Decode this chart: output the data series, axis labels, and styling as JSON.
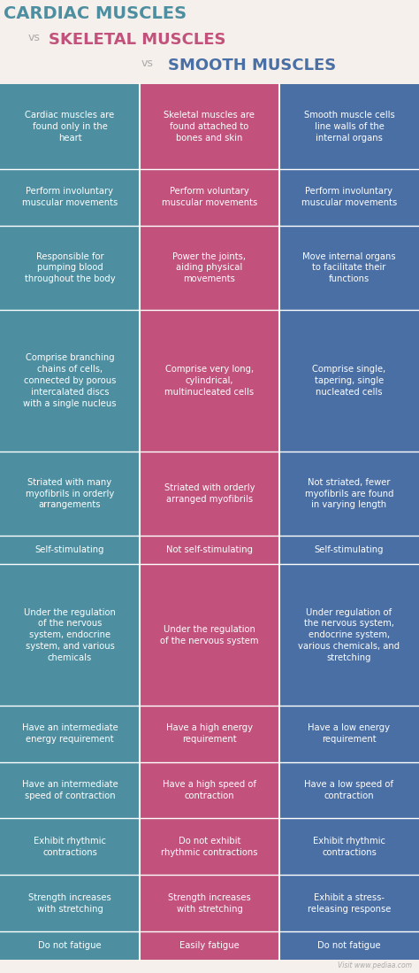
{
  "col1_color": "#4d8fa0",
  "col2_color": "#c2527b",
  "col3_color": "#4a6fa5",
  "bg_color": "#f5f0eb",
  "title_color1": "#4d8fa0",
  "title_color_vs": "#aaaaaa",
  "title_color2": "#c2527b",
  "title_color3": "#4a6fa5",
  "text_color": "#ffffff",
  "sep_color": "#ffffff",
  "footer_color": "#aaaaaa",
  "rows": [
    [
      "Cardiac muscles are\nfound only in the\nheart",
      "Skeletal muscles are\nfound attached to\nbones and skin",
      "Smooth muscle cells\nline walls of the\ninternal organs"
    ],
    [
      "Perform involuntary\nmuscular movements",
      "Perform voluntary\nmuscular movements",
      "Perform involuntary\nmuscular movements"
    ],
    [
      "Responsible for\npumping blood\nthroughout the body",
      "Power the joints,\naiding physical\nmovements",
      "Move internal organs\nto facilitate their\nfunctions"
    ],
    [
      "Comprise branching\nchains of cells,\nconnected by porous\nintercalated discs\nwith a single nucleus",
      "Comprise very long,\ncylindrical,\nmultinucleated cells",
      "Comprise single,\ntapering, single\nnucleated cells"
    ],
    [
      "Striated with many\nmyofibrils in orderly\narrangements",
      "Striated with orderly\narranged myofibrils",
      "Not striated, fewer\nmyofibrils are found\nin varying length"
    ],
    [
      "Self-stimulating",
      "Not self-stimulating",
      "Self-stimulating"
    ],
    [
      "Under the regulation\nof the nervous\nsystem, endocrine\nsystem, and various\nchemicals",
      "Under the regulation\nof the nervous system",
      "Under regulation of\nthe nervous system,\nendocrine system,\nvarious chemicals, and\nstretching"
    ],
    [
      "Have an intermediate\nenergy requirement",
      "Have a high energy\nrequirement",
      "Have a low energy\nrequirement"
    ],
    [
      "Have an intermediate\nspeed of contraction",
      "Have a high speed of\ncontraction",
      "Have a low speed of\ncontraction"
    ],
    [
      "Exhibit rhythmic\ncontractions",
      "Do not exhibit\nrhythmic contractions",
      "Exhibit rhythmic\ncontractions"
    ],
    [
      "Strength increases\nwith stretching",
      "Strength increases\nwith stretching",
      "Exhibit a stress-\nreleasing response"
    ],
    [
      "Do not fatigue",
      "Easily fatigue",
      "Do not fatigue"
    ]
  ],
  "footer": "Visit www.pediaa.com",
  "row_weights": [
    3,
    2,
    3,
    5,
    3,
    1,
    5,
    2,
    2,
    2,
    2,
    1
  ]
}
